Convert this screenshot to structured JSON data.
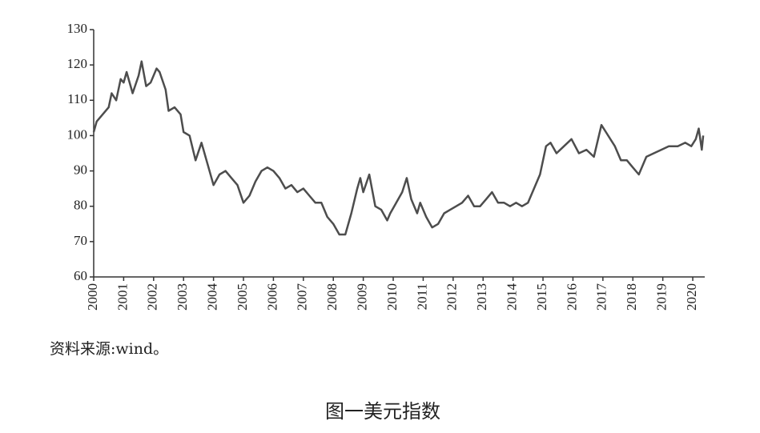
{
  "chart_data": {
    "type": "line",
    "title": "图一美元指数",
    "source": "资料来源:wind。",
    "color": "#4d4d4d",
    "x": [
      2000.0,
      2000.1,
      2000.3,
      2000.5,
      2000.6,
      2000.75,
      2000.9,
      2001.0,
      2001.1,
      2001.3,
      2001.5,
      2001.6,
      2001.75,
      2001.9,
      2002.1,
      2002.2,
      2002.4,
      2002.5,
      2002.7,
      2002.9,
      2003.0,
      2003.2,
      2003.4,
      2003.6,
      2003.8,
      2004.0,
      2004.2,
      2004.4,
      2004.6,
      2004.8,
      2005.0,
      2005.2,
      2005.4,
      2005.6,
      2005.8,
      2006.0,
      2006.2,
      2006.4,
      2006.6,
      2006.8,
      2007.0,
      2007.2,
      2007.4,
      2007.6,
      2007.8,
      2008.0,
      2008.2,
      2008.4,
      2008.6,
      2008.8,
      2008.9,
      2009.0,
      2009.2,
      2009.4,
      2009.6,
      2009.8,
      2009.9,
      2010.1,
      2010.3,
      2010.45,
      2010.6,
      2010.8,
      2010.9,
      2011.1,
      2011.3,
      2011.5,
      2011.7,
      2011.9,
      2012.1,
      2012.3,
      2012.5,
      2012.7,
      2012.9,
      2013.1,
      2013.3,
      2013.5,
      2013.7,
      2013.9,
      2014.1,
      2014.3,
      2014.5,
      2014.7,
      2014.9,
      2015.1,
      2015.25,
      2015.45,
      2015.7,
      2015.95,
      2016.2,
      2016.45,
      2016.7,
      2016.95,
      2017.1,
      2017.4,
      2017.6,
      2017.8,
      2018.0,
      2018.2,
      2018.45,
      2018.7,
      2018.95,
      2019.2,
      2019.5,
      2019.75,
      2019.95,
      2020.1,
      2020.2,
      2020.3,
      2020.35
    ],
    "values": [
      101,
      104,
      106,
      108,
      112,
      110,
      116,
      115,
      118,
      112,
      117,
      121,
      114,
      115,
      119,
      118,
      113,
      107,
      108,
      106,
      101,
      100,
      93,
      98,
      92,
      86,
      89,
      90,
      88,
      86,
      81,
      83,
      87,
      90,
      91,
      90,
      88,
      85,
      86,
      84,
      85,
      83,
      81,
      81,
      77,
      75,
      72,
      72,
      78,
      85,
      88,
      84,
      89,
      80,
      79,
      76,
      78,
      81,
      84,
      88,
      82,
      78,
      81,
      77,
      74,
      75,
      78,
      79,
      80,
      81,
      83,
      80,
      80,
      82,
      84,
      81,
      81,
      80,
      81,
      80,
      81,
      85,
      89,
      97,
      98,
      95,
      97,
      99,
      95,
      96,
      94,
      103,
      101,
      97,
      93,
      93,
      91,
      89,
      94,
      95,
      96,
      97,
      97,
      98,
      97,
      99,
      102,
      96,
      100
    ],
    "xlim": [
      2000,
      2020.4
    ],
    "xticks": [
      2000,
      2001,
      2002,
      2003,
      2004,
      2005,
      2006,
      2007,
      2008,
      2009,
      2010,
      2011,
      2012,
      2013,
      2014,
      2015,
      2016,
      2017,
      2018,
      2019,
      2020
    ],
    "ylim": [
      60,
      130
    ],
    "yticks": [
      60,
      70,
      80,
      90,
      100,
      110,
      120,
      130
    ]
  }
}
